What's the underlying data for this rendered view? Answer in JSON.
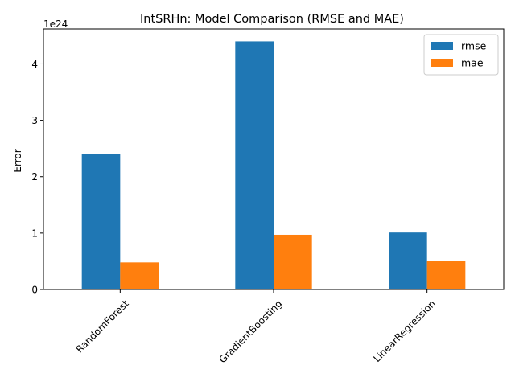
{
  "chart_data": {
    "type": "bar",
    "title": "IntSRHn: Model Comparison (RMSE and MAE)",
    "xlabel": "",
    "ylabel": "Error",
    "y_offset_label": "1e24",
    "categories": [
      "RandomForest",
      "GradientBoosting",
      "LinearRegression"
    ],
    "series": [
      {
        "name": "rmse",
        "color": "#1f77b4",
        "values": [
          2.4e+24,
          4.4e+24,
          1.01e+24
        ]
      },
      {
        "name": "mae",
        "color": "#ff7f0e",
        "values": [
          4.8e+23,
          9.7e+23,
          5e+23
        ]
      }
    ],
    "ylim": [
      0,
      4.62e+24
    ],
    "yticks": [
      0,
      1e+24,
      2e+24,
      3e+24,
      4e+24
    ],
    "ytick_labels": [
      "0",
      "1",
      "2",
      "3",
      "4"
    ],
    "grid": false,
    "legend": "top-right",
    "xtick_rotation_deg": 45
  }
}
